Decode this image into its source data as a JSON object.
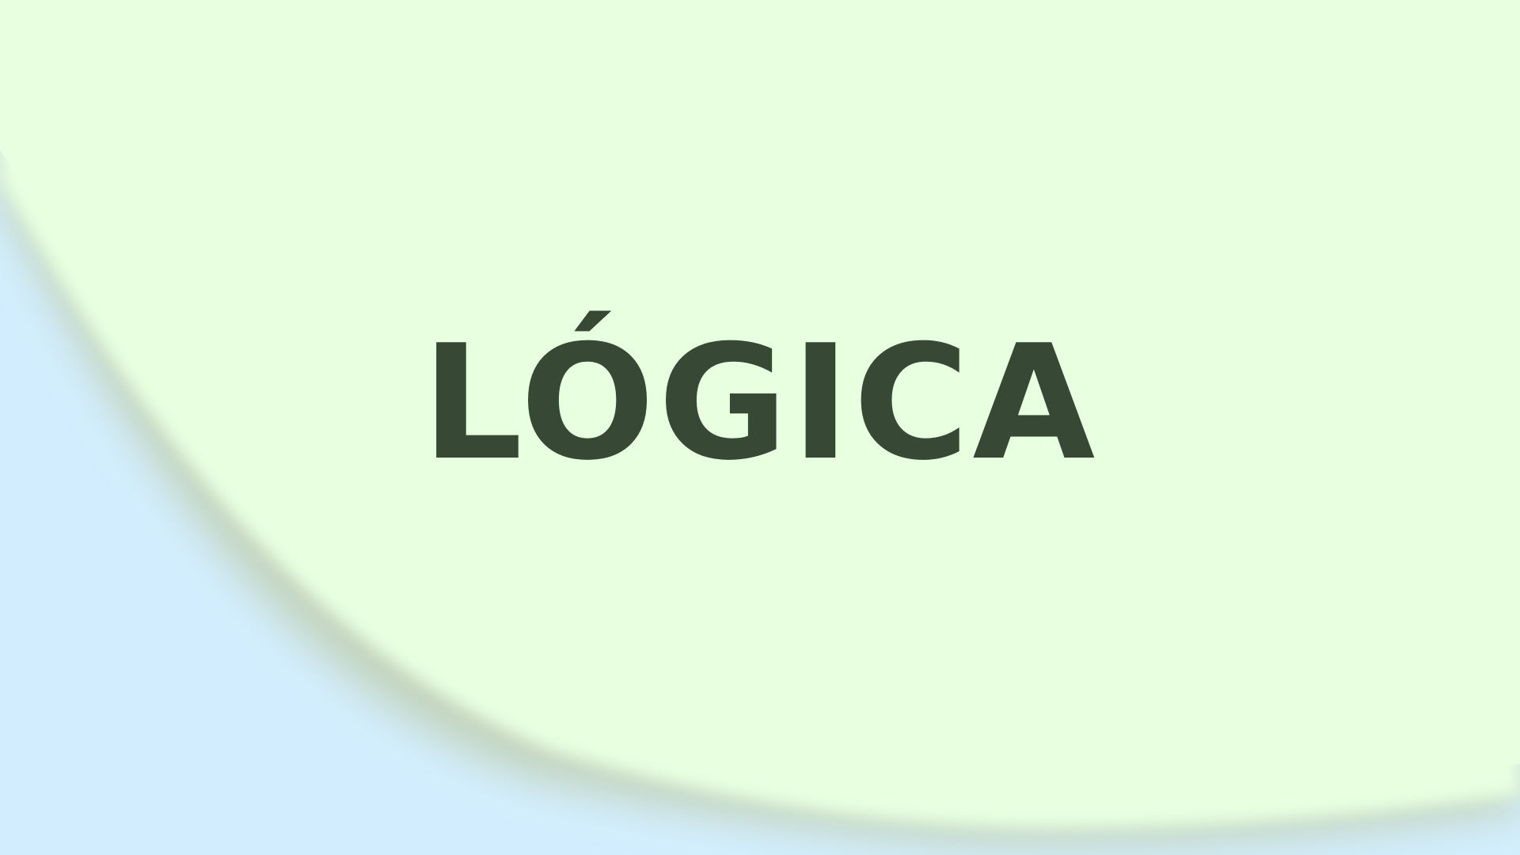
{
  "slide": {
    "title": "LÓGICA"
  },
  "colors": {
    "background": "#d2eefe",
    "paper": "#e8ffe0",
    "paper_shadow": "#c3d3bb",
    "title_text": "#374934"
  }
}
